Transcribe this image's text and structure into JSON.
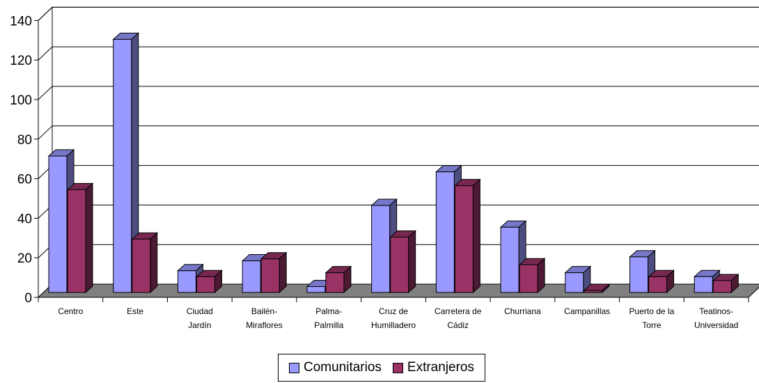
{
  "chart_data": {
    "type": "bar",
    "style": "3d-clustered-column",
    "categories": [
      [
        "Centro"
      ],
      [
        "Este"
      ],
      [
        "Ciudad",
        "Jardín"
      ],
      [
        "Bailén-",
        "Miraflores"
      ],
      [
        "Palma-",
        "Palmilla"
      ],
      [
        "Cruz de",
        "Humilladero"
      ],
      [
        "Carretera de",
        "Cádiz"
      ],
      [
        "Churriana"
      ],
      [
        "Campanillas"
      ],
      [
        "Puerto de la",
        "Torre"
      ],
      [
        "Teatinos-",
        "Universidad"
      ]
    ],
    "series": [
      {
        "name": "Comunitarios",
        "color": "#9999ff",
        "values": [
          69,
          128,
          11,
          16,
          3,
          44,
          61,
          33,
          10,
          18,
          8
        ]
      },
      {
        "name": "Extranjeros",
        "color": "#993366",
        "values": [
          52,
          27,
          8,
          17,
          10,
          28,
          54,
          14,
          1,
          8,
          6
        ]
      }
    ],
    "ylim": [
      0,
      140
    ],
    "yticks": [
      0,
      20,
      40,
      60,
      80,
      100,
      120,
      140
    ],
    "grid": true,
    "legend_position": "bottom"
  }
}
